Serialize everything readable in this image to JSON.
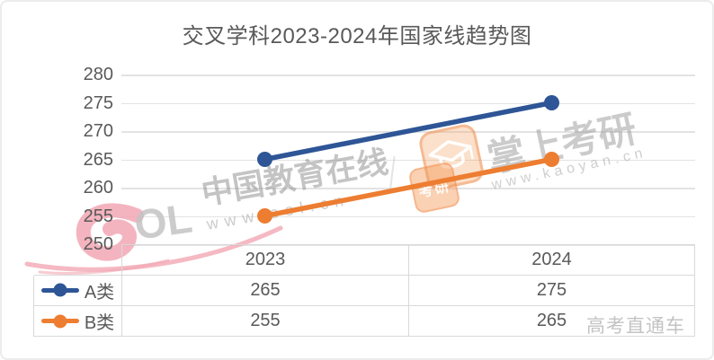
{
  "chart_data": {
    "type": "line",
    "title": "交叉学科2023-2024年国家线趋势图",
    "categories": [
      "2023",
      "2024"
    ],
    "series": [
      {
        "name": "A类",
        "values": [
          265,
          275
        ],
        "color": "#2E5596"
      },
      {
        "name": "B类",
        "values": [
          255,
          265
        ],
        "color": "#ED7D31"
      }
    ],
    "ylim": [
      250,
      280
    ],
    "yticks": [
      280,
      275,
      270,
      265,
      260,
      255,
      250
    ],
    "grid": true,
    "gridline_color": "#E3E3E3",
    "axis_text_color": "#595959",
    "marker": "circle",
    "legend_position": "data-table-left-column"
  },
  "table": {
    "note": "data table below plot mirrors chart series",
    "border_color": "#D9D9D9"
  },
  "watermarks": {
    "eol": {
      "logo_letters": "OL",
      "logo_color": "#F2AEB9",
      "name": "中国教育在线",
      "url": "www.eol.cn"
    },
    "kaoyan": {
      "icon": "graduation-cap-icon",
      "icon_color": "#ED7D31",
      "badge_text": "考研",
      "name": "掌上考研",
      "url": "www.kaoyan.cn"
    },
    "gaokao": {
      "name": "高考直通车"
    }
  }
}
